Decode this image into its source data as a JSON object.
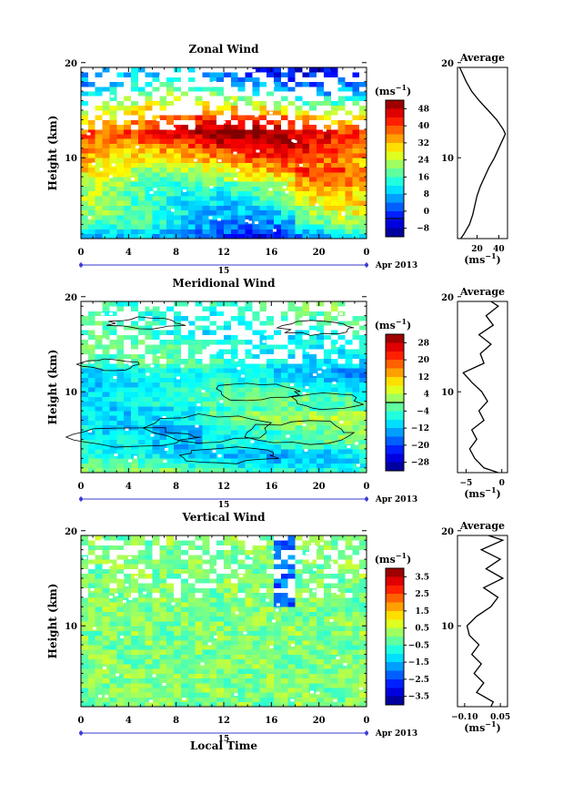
{
  "chart_data": [
    {
      "type": "heatmap",
      "title": "Zonal Wind",
      "xlabel": "",
      "ylabel": "Height (km)",
      "x_ticks": [
        "0",
        "4",
        "8",
        "12",
        "16",
        "20",
        "0"
      ],
      "y_ticks": [
        "20",
        "10"
      ],
      "xlim": [
        0,
        24
      ],
      "ylim": [
        1.5,
        19.5
      ],
      "date_day": "15",
      "date_month": "Apr 2013",
      "colorbar": {
        "unit": "(ms",
        "unit_exp": "−1",
        "ticks": [
          "48",
          "40",
          "32",
          "24",
          "16",
          "8",
          "0",
          "−8"
        ],
        "range": [
          -8,
          52
        ],
        "contour_level": 0
      },
      "profile": {
        "title": "Average",
        "xlabel": "(ms",
        "xlabel_exp": "−1",
        "x_ticks": [
          "20",
          "40"
        ],
        "x_tick_values": [
          20,
          40
        ],
        "xlim": [
          2,
          48
        ],
        "y_ticks": [
          "20",
          "10"
        ],
        "height_km": [
          1.5,
          2,
          3,
          4,
          5,
          6,
          7,
          8,
          9,
          10,
          11,
          12,
          12.5,
          13,
          14,
          15,
          16,
          17,
          18,
          19,
          19.5
        ],
        "values": [
          5,
          8,
          13,
          16,
          18,
          20,
          23,
          27,
          31,
          36,
          40,
          44,
          46,
          44,
          38,
          30,
          22,
          15,
          10,
          6,
          4
        ]
      }
    },
    {
      "type": "heatmap",
      "title": "Meridional Wind",
      "xlabel": "",
      "ylabel": "Height (km)",
      "x_ticks": [
        "0",
        "4",
        "8",
        "12",
        "16",
        "20",
        "0"
      ],
      "y_ticks": [
        "20",
        "10"
      ],
      "xlim": [
        0,
        24
      ],
      "ylim": [
        1.5,
        19.5
      ],
      "date_day": "15",
      "date_month": "Apr 2013",
      "colorbar": {
        "unit": "(ms",
        "unit_exp": "−1",
        "ticks": [
          "28",
          "20",
          "12",
          "4",
          "−4",
          "−12",
          "−20",
          "−28"
        ],
        "range": [
          -32,
          32
        ],
        "contour_level": 0
      },
      "profile": {
        "title": "Average",
        "xlabel": "(ms",
        "xlabel_exp": "−1",
        "x_ticks": [
          "−5",
          "0"
        ],
        "x_tick_values": [
          -5,
          0
        ],
        "xlim": [
          -6.2,
          0.8
        ],
        "y_ticks": [
          "20",
          "10"
        ],
        "height_km": [
          1.5,
          2,
          3,
          4,
          5,
          6,
          7,
          8,
          9,
          10,
          11,
          12,
          13,
          14,
          15,
          16,
          17,
          18,
          19,
          19.5
        ],
        "values": [
          -0.5,
          -2.5,
          -3.8,
          -4.5,
          -3.5,
          -4.2,
          -2.5,
          -3.2,
          -2.0,
          -2.8,
          -4.2,
          -5.4,
          -2.5,
          -3.0,
          -1.5,
          -3.2,
          -1.2,
          -2.2,
          -0.5,
          -1.5
        ]
      }
    },
    {
      "type": "heatmap",
      "title": "Vertical Wind",
      "xlabel": "Local Time",
      "ylabel": "Height (km)",
      "x_ticks": [
        "0",
        "4",
        "8",
        "12",
        "16",
        "20",
        "0"
      ],
      "y_ticks": [
        "20",
        "10"
      ],
      "xlim": [
        0,
        24
      ],
      "ylim": [
        1.5,
        19.5
      ],
      "date_day": "15",
      "date_month": "Apr 2013",
      "colorbar": {
        "unit": "(ms",
        "unit_exp": "−1",
        "ticks": [
          "3.5",
          "2.5",
          "1.5",
          "0.5",
          "−0.5",
          "−1.5",
          "−2.5",
          "−3.5"
        ],
        "range": [
          -4,
          4
        ],
        "contour_level": null
      },
      "profile": {
        "title": "Average",
        "xlabel": "(ms",
        "xlabel_exp": "−1",
        "x_ticks": [
          "−0.10",
          "0.05"
        ],
        "x_tick_values": [
          -0.1,
          0.05
        ],
        "xlim": [
          -0.13,
          0.08
        ],
        "y_ticks": [
          "20",
          "10"
        ],
        "height_km": [
          1.5,
          2,
          3,
          4,
          5,
          6,
          7,
          8,
          9,
          10,
          11,
          12,
          13,
          14,
          15,
          16,
          17,
          18,
          19,
          19.5
        ],
        "values": [
          0.01,
          0.02,
          -0.05,
          -0.02,
          -0.06,
          -0.03,
          -0.07,
          -0.04,
          -0.08,
          -0.09,
          -0.05,
          0.01,
          0.04,
          -0.02,
          0.06,
          -0.01,
          0.05,
          -0.03,
          0.06,
          0.0
        ]
      }
    }
  ]
}
